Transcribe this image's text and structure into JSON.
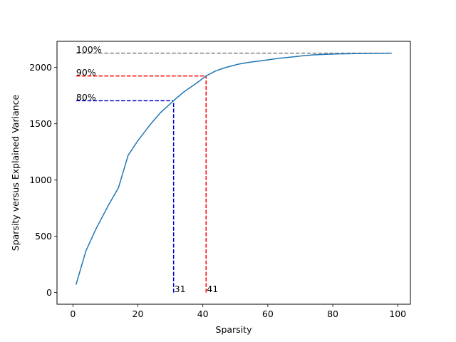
{
  "chart_data": {
    "type": "line",
    "xlabel": "Sparsity",
    "ylabel": "Sparsity versus Explained Variance",
    "xlim": [
      -4.9,
      103.9
    ],
    "ylim": [
      -103.5,
      2232.5
    ],
    "xticks": [
      0,
      20,
      40,
      60,
      80,
      100
    ],
    "yticks": [
      0,
      500,
      1000,
      1500,
      2000
    ],
    "grid": false,
    "series": [
      {
        "color": "#1f77b4",
        "x": [
          1,
          4,
          7,
          11,
          14,
          17,
          20,
          24,
          27,
          31,
          34,
          38,
          41,
          44,
          47,
          51,
          54,
          58,
          61,
          64,
          68,
          71,
          74,
          78,
          81,
          84,
          88,
          91,
          94,
          98
        ],
        "y": [
          75,
          370,
          560,
          780,
          930,
          1220,
          1350,
          1500,
          1600,
          1705,
          1780,
          1860,
          1925,
          1970,
          2000,
          2030,
          2045,
          2060,
          2072,
          2084,
          2095,
          2105,
          2112,
          2117,
          2120,
          2122,
          2124,
          2125,
          2126,
          2127
        ]
      }
    ],
    "thresholds": [
      {
        "label": "100%",
        "y": 2127,
        "color": "#808080"
      },
      {
        "label": "90%",
        "y": 1925,
        "x": 41,
        "x_label": "41",
        "color": "#ff0000"
      },
      {
        "label": "80%",
        "y": 1705,
        "x": 31,
        "x_label": "31",
        "color": "#0000cc"
      }
    ]
  }
}
